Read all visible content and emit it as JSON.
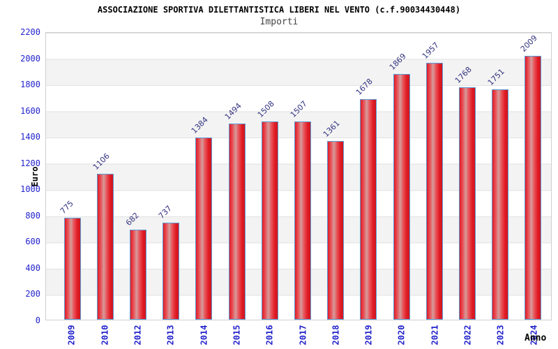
{
  "chart_data": {
    "type": "bar",
    "title": "ASSOCIAZIONE SPORTIVA DILETTANTISTICA LIBERI NEL VENTO (c.f.90034430448)",
    "subtitle": "Importi",
    "xlabel": "Anno",
    "ylabel": "Euro",
    "categories": [
      "2009",
      "2010",
      "2012",
      "2013",
      "2014",
      "2015",
      "2016",
      "2017",
      "2018",
      "2019",
      "2020",
      "2021",
      "2022",
      "2023",
      "2024"
    ],
    "values": [
      775,
      1106,
      682,
      737,
      1384,
      1494,
      1508,
      1507,
      1361,
      1678,
      1869,
      1957,
      1768,
      1751,
      2009
    ],
    "ylim": [
      0,
      2200
    ],
    "yticks": [
      0,
      200,
      400,
      600,
      800,
      1000,
      1200,
      1400,
      1600,
      1800,
      2000,
      2200
    ],
    "grid": "horizontal gridlines every 200 with alternating white/gray bands",
    "legend": null,
    "colors": {
      "bar_fill_edge": "#e01b24",
      "bar_fill_center": "#d49c9c",
      "bar_border": "#5b9bd5",
      "axis_tick_text": "#2222cc",
      "value_label_text": "#333380",
      "band_gray": "#f3f3f3",
      "grid_line": "#e2e2e2",
      "title_text": "#000000",
      "subtitle_text": "#444444"
    }
  }
}
